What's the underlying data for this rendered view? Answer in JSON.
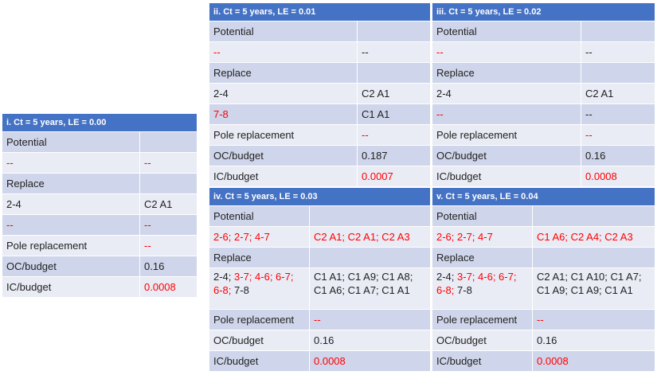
{
  "tables": [
    {
      "title": "i. Ct = 5 years, LE = 0.00",
      "rows": [
        {
          "c1": [
            {
              "t": "Potential"
            }
          ],
          "c2": []
        },
        {
          "c1": [
            {
              "t": "--",
              "red": true
            }
          ],
          "c2": [
            {
              "t": "--",
              "red": true
            }
          ]
        },
        {
          "c1": [
            {
              "t": "Replace"
            }
          ],
          "c2": []
        },
        {
          "c1": [
            {
              "t": "2-4"
            }
          ],
          "c2": [
            {
              "t": "C2 A1"
            }
          ]
        },
        {
          "c1": [
            {
              "t": "--",
              "red": true
            }
          ],
          "c2": [
            {
              "t": "--",
              "red": true
            }
          ]
        },
        {
          "c1": [
            {
              "t": "Pole replacement"
            }
          ],
          "c2": [
            {
              "t": "--",
              "red": true
            }
          ]
        },
        {
          "c1": [
            {
              "t": "OC/budget"
            }
          ],
          "c2": [
            {
              "t": "0.16"
            }
          ]
        },
        {
          "c1": [
            {
              "t": "IC/budget"
            }
          ],
          "c2": [
            {
              "t": "0.0008",
              "red": true
            }
          ]
        }
      ]
    },
    {
      "title": "ii. Ct = 5 years, LE = 0.01",
      "rows": [
        {
          "c1": [
            {
              "t": "Potential"
            }
          ],
          "c2": []
        },
        {
          "c1": [
            {
              "t": "--",
              "red": true
            }
          ],
          "c2": [
            {
              "t": "--"
            }
          ]
        },
        {
          "c1": [
            {
              "t": "Replace"
            }
          ],
          "c2": []
        },
        {
          "c1": [
            {
              "t": "2-4"
            }
          ],
          "c2": [
            {
              "t": "C2 A1"
            }
          ]
        },
        {
          "c1": [
            {
              "t": "7-8",
              "red": true
            }
          ],
          "c2": [
            {
              "t": "C1 A1"
            }
          ]
        },
        {
          "c1": [
            {
              "t": "Pole replacement"
            }
          ],
          "c2": [
            {
              "t": "--",
              "red": true
            }
          ]
        },
        {
          "c1": [
            {
              "t": "OC/budget"
            }
          ],
          "c2": [
            {
              "t": "0.187"
            }
          ]
        },
        {
          "c1": [
            {
              "t": "IC/budget"
            }
          ],
          "c2": [
            {
              "t": "0.0007",
              "red": true
            }
          ]
        }
      ]
    },
    {
      "title": "iii. Ct = 5 years, LE = 0.02",
      "rows": [
        {
          "c1": [
            {
              "t": "Potential"
            }
          ],
          "c2": []
        },
        {
          "c1": [
            {
              "t": "--",
              "red": true
            }
          ],
          "c2": [
            {
              "t": "--"
            }
          ]
        },
        {
          "c1": [
            {
              "t": "Replace"
            }
          ],
          "c2": []
        },
        {
          "c1": [
            {
              "t": "2-4"
            }
          ],
          "c2": [
            {
              "t": "C2 A1"
            }
          ]
        },
        {
          "c1": [
            {
              "t": "--",
              "red": true
            }
          ],
          "c2": [
            {
              "t": "--"
            }
          ]
        },
        {
          "c1": [
            {
              "t": "Pole replacement"
            }
          ],
          "c2": [
            {
              "t": "--",
              "red": true
            }
          ]
        },
        {
          "c1": [
            {
              "t": "OC/budget"
            }
          ],
          "c2": [
            {
              "t": "0.16"
            }
          ]
        },
        {
          "c1": [
            {
              "t": "IC/budget"
            }
          ],
          "c2": [
            {
              "t": "0.0008",
              "red": true
            }
          ]
        }
      ]
    },
    {
      "title": "iv. Ct = 5 years, LE = 0.03",
      "rows": [
        {
          "c1": [
            {
              "t": "Potential"
            }
          ],
          "c2": []
        },
        {
          "c1": [
            {
              "t": "2-6; 2-7; 4-7",
              "red": true
            }
          ],
          "c2": [
            {
              "t": "C2 A1; C2 A1; C2 A3",
              "red": true
            }
          ]
        },
        {
          "c1": [
            {
              "t": "Replace"
            }
          ],
          "c2": []
        },
        {
          "c1": [
            {
              "t": "2-4; "
            },
            {
              "t": "3-7; 4-6; 6-7; 6-8;",
              "red": true
            },
            {
              "t": " 7-8"
            }
          ],
          "c2": [
            {
              "t": "C1 A1; C1 A9; C1 A8; C1 A6; C1 A7; C1 A1"
            }
          ]
        },
        {
          "c1": [
            {
              "t": "Pole replacement"
            }
          ],
          "c2": [
            {
              "t": "--",
              "red": true
            }
          ]
        },
        {
          "c1": [
            {
              "t": "OC/budget"
            }
          ],
          "c2": [
            {
              "t": "0.16"
            }
          ]
        },
        {
          "c1": [
            {
              "t": "IC/budget"
            }
          ],
          "c2": [
            {
              "t": "0.0008",
              "red": true
            }
          ]
        }
      ]
    },
    {
      "title": "v. Ct = 5 years, LE = 0.04",
      "rows": [
        {
          "c1": [
            {
              "t": "Potential"
            }
          ],
          "c2": []
        },
        {
          "c1": [
            {
              "t": "2-6; 2-7; 4-7",
              "red": true
            }
          ],
          "c2": [
            {
              "t": "C1 A6; C2 A4; C2 A3",
              "red": true
            }
          ]
        },
        {
          "c1": [
            {
              "t": "Replace"
            }
          ],
          "c2": []
        },
        {
          "c1": [
            {
              "t": "2-4; "
            },
            {
              "t": "3-7; 4-6; 6-7; 6-8;",
              "red": true
            },
            {
              "t": " 7-8"
            }
          ],
          "c2": [
            {
              "t": "C2 A1; C1 A10; C1 A7; C1 A9; C1 A9; C1 A1"
            }
          ]
        },
        {
          "c1": [
            {
              "t": "Pole replacement"
            }
          ],
          "c2": [
            {
              "t": "--",
              "red": true
            }
          ]
        },
        {
          "c1": [
            {
              "t": "OC/budget"
            }
          ],
          "c2": [
            {
              "t": "0.16"
            }
          ]
        },
        {
          "c1": [
            {
              "t": "IC/budget"
            }
          ],
          "c2": [
            {
              "t": "0.0008",
              "red": true
            }
          ]
        }
      ]
    }
  ]
}
